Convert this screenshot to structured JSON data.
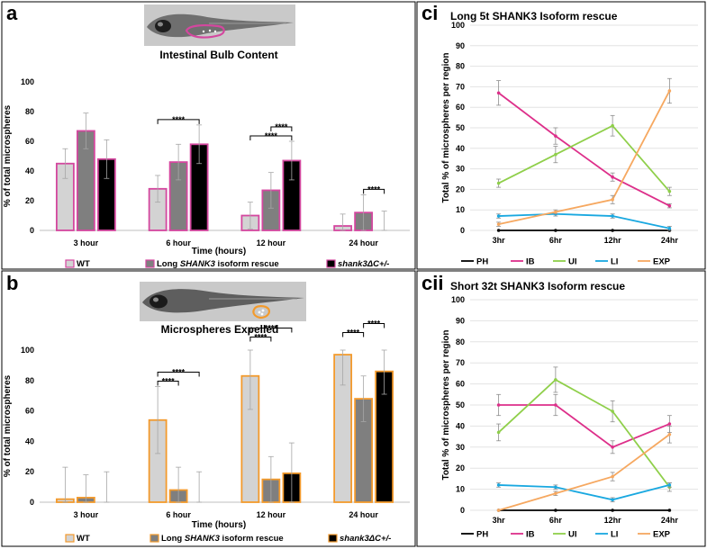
{
  "panels": {
    "a": {
      "letter": "a",
      "image_caption": "Intestinal Bulb Content"
    },
    "b": {
      "letter": "b",
      "image_caption": "Microspheres Expelled"
    },
    "ci": {
      "letter": "ci"
    },
    "cii": {
      "letter": "cii"
    }
  },
  "bar_legend": {
    "wt": "WT",
    "rescue_prefix": "Long ",
    "rescue_gene": "SHANK3",
    "rescue_suffix": " isoform rescue",
    "mutant": "shank3ΔC+/-"
  },
  "significance_marker": "****",
  "colors": {
    "wt_fill": "#d3d3d3",
    "rescue_fill": "#7f7f7f",
    "mutant_fill": "#000000",
    "panel_a_outline": "#d4479f",
    "panel_b_outline": "#f39a2c",
    "PH": "#000000",
    "IB": "#dd2f8a",
    "UI": "#8fcf4a",
    "LI": "#19a8e0",
    "EXP": "#f6a860"
  },
  "chart_data": [
    {
      "id": "a",
      "type": "bar",
      "title": "",
      "xlabel": "Time (hours)",
      "ylabel": "% of total microspheres",
      "ylim": [
        0,
        100
      ],
      "yticks": [
        0,
        20,
        40,
        60,
        80,
        100
      ],
      "categories": [
        "3 hour",
        "6 hour",
        "12 hour",
        "24 hour"
      ],
      "series": [
        {
          "name": "WT",
          "values": [
            45,
            28,
            10,
            3
          ],
          "errors": [
            10,
            9,
            9,
            8
          ]
        },
        {
          "name": "Long SHANK3 isoform rescue",
          "values": [
            67,
            46,
            27,
            12
          ],
          "errors": [
            12,
            12,
            12,
            12
          ]
        },
        {
          "name": "shank3ΔC+/-",
          "values": [
            48,
            58,
            47,
            0
          ],
          "errors": [
            13,
            13,
            13,
            13
          ]
        }
      ],
      "significance": [
        {
          "category": 1,
          "from": 0,
          "to": 2
        },
        {
          "category": 2,
          "from": 0,
          "to": 2
        },
        {
          "category": 2,
          "from": 1,
          "to": 2
        },
        {
          "category": 3,
          "from": 1,
          "to": 2
        }
      ]
    },
    {
      "id": "b",
      "type": "bar",
      "title": "",
      "xlabel": "Time (hours)",
      "ylabel": "% of total microspheres",
      "ylim": [
        0,
        100
      ],
      "yticks": [
        0,
        20,
        40,
        60,
        80,
        100
      ],
      "categories": [
        "3 hour",
        "6 hour",
        "12 hour",
        "24 hour"
      ],
      "series": [
        {
          "name": "WT",
          "values": [
            2,
            54,
            83,
            97
          ],
          "errors": [
            21,
            22,
            22,
            20
          ]
        },
        {
          "name": "Long SHANK3 isoform rescue",
          "values": [
            3,
            8,
            15,
            68
          ],
          "errors": [
            15,
            15,
            15,
            15
          ]
        },
        {
          "name": "shank3ΔC+/-",
          "values": [
            0,
            0,
            19,
            86
          ],
          "errors": [
            20,
            20,
            20,
            15
          ]
        }
      ],
      "significance": [
        {
          "category": 1,
          "from": 0,
          "to": 1
        },
        {
          "category": 1,
          "from": 0,
          "to": 2
        },
        {
          "category": 2,
          "from": 0,
          "to": 1
        },
        {
          "category": 2,
          "from": 0,
          "to": 2
        },
        {
          "category": 3,
          "from": 0,
          "to": 1
        },
        {
          "category": 3,
          "from": 1,
          "to": 2
        }
      ]
    },
    {
      "id": "ci",
      "type": "line",
      "title": "Long 5t SHANK3 Isoform rescue",
      "xlabel": "",
      "ylabel": "Total % of microspheres per region",
      "ylim": [
        0,
        100
      ],
      "yticks": [
        0,
        10,
        20,
        30,
        40,
        50,
        60,
        70,
        80,
        90,
        100
      ],
      "categories": [
        "3hr",
        "6hr",
        "12hr",
        "24hr"
      ],
      "legend_position": "bottom",
      "series": [
        {
          "name": "PH",
          "values": [
            0,
            0,
            0,
            0
          ],
          "errors": [
            0,
            0,
            0,
            0
          ]
        },
        {
          "name": "IB",
          "values": [
            67,
            46,
            26,
            12
          ],
          "errors": [
            6,
            4,
            2,
            1
          ]
        },
        {
          "name": "UI",
          "values": [
            23,
            37,
            51,
            19
          ],
          "errors": [
            2,
            4,
            5,
            2
          ]
        },
        {
          "name": "LI",
          "values": [
            7,
            8,
            7,
            1
          ],
          "errors": [
            1,
            1,
            1,
            1
          ]
        },
        {
          "name": "EXP",
          "values": [
            3,
            9,
            15,
            68
          ],
          "errors": [
            1,
            1,
            2,
            6
          ]
        }
      ]
    },
    {
      "id": "cii",
      "type": "line",
      "title": "Short 32t SHANK3 Isoform rescue",
      "xlabel": "",
      "ylabel": "Total % of microspheres per region",
      "ylim": [
        0,
        100
      ],
      "yticks": [
        0,
        10,
        20,
        30,
        40,
        50,
        60,
        70,
        80,
        90,
        100
      ],
      "categories": [
        "3hr",
        "6hr",
        "12hr",
        "24hr"
      ],
      "legend_position": "bottom",
      "series": [
        {
          "name": "PH",
          "values": [
            0,
            0,
            0,
            0
          ],
          "errors": [
            0,
            0,
            0,
            0
          ]
        },
        {
          "name": "IB",
          "values": [
            50,
            50,
            30,
            41
          ],
          "errors": [
            5,
            5,
            3,
            4
          ]
        },
        {
          "name": "UI",
          "values": [
            37,
            62,
            47,
            11
          ],
          "errors": [
            4,
            6,
            5,
            2
          ]
        },
        {
          "name": "LI",
          "values": [
            12,
            11,
            5,
            12
          ],
          "errors": [
            1,
            1,
            1,
            1
          ]
        },
        {
          "name": "EXP",
          "values": [
            0,
            8,
            16,
            36
          ],
          "errors": [
            0,
            1,
            2,
            4
          ]
        }
      ]
    }
  ]
}
